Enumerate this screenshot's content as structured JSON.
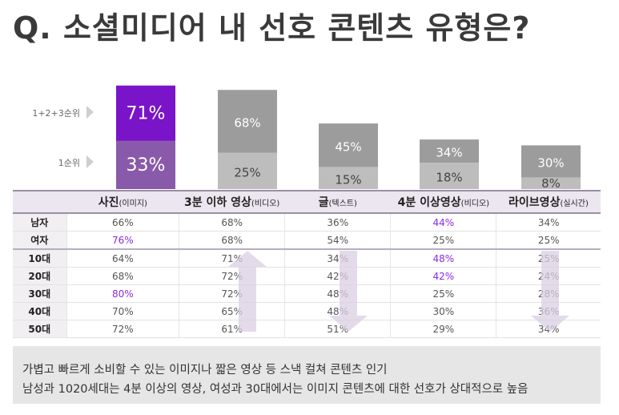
{
  "title": "Q. 소셜미디어 내 선호 콘텐츠 유형은?",
  "rank_labels": {
    "top3": "1+2+3순위",
    "first": "1순위"
  },
  "colors": {
    "highlight": "#8a2be2",
    "primary_top": "#7a14c8",
    "primary_first": "#8a5aaa",
    "grey_top": "#9c9c9c",
    "grey_first": "#bdbdbd"
  },
  "chart_data": {
    "type": "bar",
    "categories": [
      "사진(이미지)",
      "3분 이하 영상(비디오)",
      "글(텍스트)",
      "4분 이상영상(비디오)",
      "라이브영상(실시간)"
    ],
    "series": [
      {
        "name": "1+2+3순위",
        "values": [
          71,
          68,
          45,
          34,
          30
        ]
      },
      {
        "name": "1순위",
        "values": [
          33,
          25,
          15,
          18,
          8
        ]
      }
    ],
    "labels_top": [
      "71%",
      "68%",
      "45%",
      "34%",
      "30%"
    ],
    "labels_first": [
      "33%",
      "25%",
      "15%",
      "18%",
      "8%"
    ]
  },
  "table": {
    "columns": [
      {
        "main": "사진",
        "sub": "(이미지)"
      },
      {
        "main": "3분 이하 영상",
        "sub": "(비디오)"
      },
      {
        "main": "글",
        "sub": "(텍스트)"
      },
      {
        "main": "4분 이상영상",
        "sub": "(비디오)"
      },
      {
        "main": "라이브영상",
        "sub": "(실시간)"
      }
    ],
    "rows": [
      {
        "label": "남자",
        "values": [
          "66%",
          "68%",
          "36%",
          "44%",
          "34%"
        ],
        "highlight": [
          3
        ]
      },
      {
        "label": "여자",
        "values": [
          "76%",
          "68%",
          "54%",
          "25%",
          "25%"
        ],
        "highlight": [
          0
        ]
      },
      {
        "label": "10대",
        "values": [
          "64%",
          "71%",
          "34%",
          "48%",
          "25%"
        ],
        "highlight": [
          3
        ]
      },
      {
        "label": "20대",
        "values": [
          "68%",
          "72%",
          "42%",
          "42%",
          "24%"
        ],
        "highlight": [
          3
        ]
      },
      {
        "label": "30대",
        "values": [
          "80%",
          "72%",
          "48%",
          "25%",
          "28%"
        ],
        "highlight": [
          0
        ]
      },
      {
        "label": "40대",
        "values": [
          "70%",
          "65%",
          "48%",
          "30%",
          "36%"
        ],
        "highlight": []
      },
      {
        "label": "50대",
        "values": [
          "72%",
          "61%",
          "51%",
          "29%",
          "34%"
        ],
        "highlight": []
      }
    ]
  },
  "summary": {
    "line1": "가볍고 빠르게 소비할 수 있는 이미지나 짧은 영상 등  스낵 컬쳐 콘텐츠 인기",
    "line2": "남성과 1020세대는 4분 이상의 영상, 여성과 30대에서는 이미지 콘텐츠에 대한 선호가 상대적으로 높음"
  }
}
